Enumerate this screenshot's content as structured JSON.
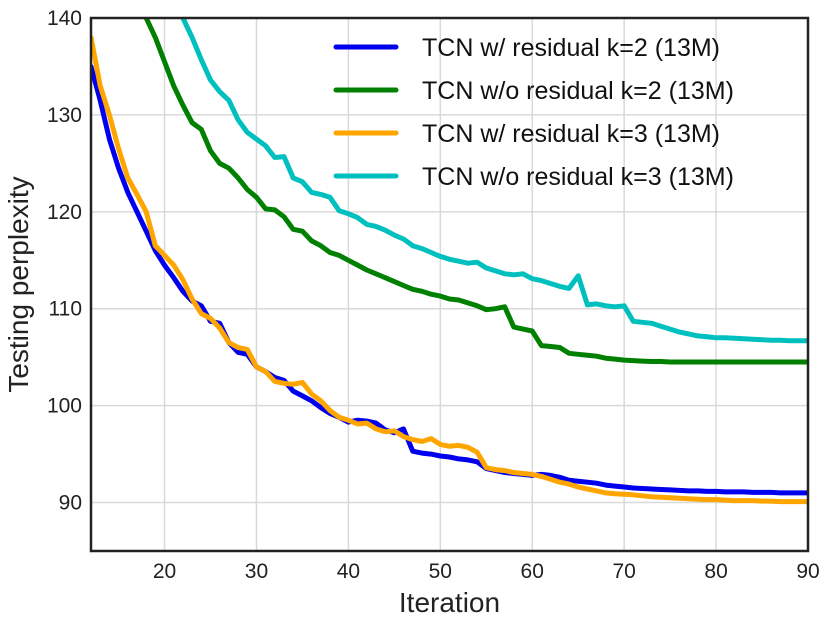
{
  "chart_data": {
    "type": "line",
    "title": "",
    "xlabel": "Iteration",
    "ylabel": "Testing perplexity",
    "xlim": [
      12,
      90
    ],
    "ylim": [
      85,
      140
    ],
    "xticks": [
      20,
      30,
      40,
      50,
      60,
      70,
      80,
      90
    ],
    "yticks": [
      90,
      100,
      110,
      120,
      130,
      140
    ],
    "grid": true,
    "legend_position": "top-right",
    "series": [
      {
        "name": "TCN w/ residual k=2 (13M)",
        "color": "#0000ee",
        "x": [
          12,
          13,
          14,
          15,
          16,
          17,
          18,
          19,
          20,
          21,
          22,
          23,
          24,
          25,
          26,
          27,
          28,
          29,
          30,
          31,
          32,
          33,
          34,
          35,
          36,
          37,
          38,
          39,
          40,
          41,
          42,
          43,
          44,
          45,
          46,
          47,
          48,
          49,
          50,
          51,
          52,
          53,
          54,
          55,
          56,
          57,
          58,
          59,
          60,
          61,
          62,
          63,
          64,
          65,
          66,
          67,
          68,
          69,
          70,
          71,
          72,
          73,
          74,
          75,
          76,
          77,
          78,
          79,
          80,
          81,
          82,
          83,
          84,
          85,
          86,
          87,
          88,
          89,
          90
        ],
        "y": [
          135,
          131.5,
          127.5,
          124.5,
          122,
          120,
          118,
          116,
          114.5,
          113.2,
          111.8,
          110.8,
          110.3,
          108.7,
          108.5,
          106.5,
          105.5,
          105.3,
          104,
          103.5,
          102.9,
          102.6,
          101.5,
          101,
          100.5,
          99.8,
          99.2,
          98.8,
          98.3,
          98.5,
          98.4,
          98.2,
          97.5,
          97.2,
          97.6,
          95.3,
          95.1,
          95,
          94.8,
          94.7,
          94.5,
          94.4,
          94.2,
          93.5,
          93.3,
          93.1,
          93,
          92.9,
          92.8,
          92.9,
          92.8,
          92.6,
          92.3,
          92.2,
          92.1,
          92,
          91.8,
          91.7,
          91.6,
          91.5,
          91.45,
          91.4,
          91.35,
          91.3,
          91.25,
          91.2,
          91.2,
          91.15,
          91.15,
          91.1,
          91.1,
          91.1,
          91.05,
          91.05,
          91.05,
          91,
          91,
          91,
          91
        ]
      },
      {
        "name": "TCN w/o residual k=2 (13M)",
        "color": "#008000",
        "x": [
          18,
          19,
          20,
          21,
          22,
          23,
          24,
          25,
          26,
          27,
          28,
          29,
          30,
          31,
          32,
          33,
          34,
          35,
          36,
          37,
          38,
          39,
          40,
          41,
          42,
          43,
          44,
          45,
          46,
          47,
          48,
          49,
          50,
          51,
          52,
          53,
          54,
          55,
          56,
          57,
          58,
          59,
          60,
          61,
          62,
          63,
          64,
          65,
          66,
          67,
          68,
          69,
          70,
          71,
          72,
          73,
          74,
          75,
          76,
          77,
          78,
          79,
          80,
          81,
          82,
          83,
          84,
          85,
          86,
          87,
          88,
          89,
          90
        ],
        "y": [
          140,
          138,
          135.5,
          133,
          131,
          129.2,
          128.5,
          126.3,
          125,
          124.5,
          123.5,
          122.3,
          121.5,
          120.3,
          120.2,
          119.5,
          118.2,
          118,
          117,
          116.5,
          115.8,
          115.5,
          115,
          114.5,
          114,
          113.6,
          113.2,
          112.8,
          112.4,
          112,
          111.8,
          111.5,
          111.3,
          111,
          110.9,
          110.6,
          110.3,
          109.9,
          110,
          110.2,
          108.1,
          107.9,
          107.7,
          106.2,
          106.1,
          106,
          105.4,
          105.3,
          105.2,
          105.1,
          104.9,
          104.8,
          104.7,
          104.65,
          104.6,
          104.55,
          104.55,
          104.5,
          104.5,
          104.5,
          104.5,
          104.5,
          104.5,
          104.5,
          104.5,
          104.5,
          104.5,
          104.5,
          104.5,
          104.5,
          104.5,
          104.5,
          104.5
        ]
      },
      {
        "name": "TCN w/ residual k=3 (13M)",
        "color": "#ffa500",
        "x": [
          12,
          13,
          14,
          15,
          16,
          17,
          18,
          19,
          20,
          21,
          22,
          23,
          24,
          25,
          26,
          27,
          28,
          29,
          30,
          31,
          32,
          33,
          34,
          35,
          36,
          37,
          38,
          39,
          40,
          41,
          42,
          43,
          44,
          45,
          46,
          47,
          48,
          49,
          50,
          51,
          52,
          53,
          54,
          55,
          56,
          57,
          58,
          59,
          60,
          61,
          62,
          63,
          64,
          65,
          66,
          67,
          68,
          69,
          70,
          71,
          72,
          73,
          74,
          75,
          76,
          77,
          78,
          79,
          80,
          81,
          82,
          83,
          84,
          85,
          86,
          87,
          88,
          89,
          90
        ],
        "y": [
          138,
          133,
          130,
          126.5,
          123.5,
          121.8,
          120,
          116.5,
          115.5,
          114.5,
          113,
          111,
          109.5,
          109,
          108,
          106.5,
          106,
          105.8,
          104,
          103.5,
          102.5,
          102.3,
          102.2,
          102.4,
          101.2,
          100.5,
          99.5,
          98.8,
          98.5,
          98.1,
          98.2,
          97.6,
          97.3,
          97.4,
          96.8,
          96.5,
          96.3,
          96.6,
          96,
          95.8,
          95.9,
          95.7,
          95.2,
          93.6,
          93.4,
          93.3,
          93.1,
          93,
          92.9,
          92.7,
          92.4,
          92.1,
          91.9,
          91.6,
          91.4,
          91.2,
          91,
          90.9,
          90.85,
          90.8,
          90.7,
          90.6,
          90.55,
          90.5,
          90.45,
          90.4,
          90.35,
          90.3,
          90.3,
          90.25,
          90.2,
          90.2,
          90.2,
          90.15,
          90.15,
          90.1,
          90.1,
          90.1,
          90.1
        ]
      },
      {
        "name": "TCN w/o residual k=3 (13M)",
        "color": "#00bfbf",
        "x": [
          22,
          23,
          24,
          25,
          26,
          27,
          28,
          29,
          30,
          31,
          32,
          33,
          34,
          35,
          36,
          37,
          38,
          39,
          40,
          41,
          42,
          43,
          44,
          45,
          46,
          47,
          48,
          49,
          50,
          51,
          52,
          53,
          54,
          55,
          56,
          57,
          58,
          59,
          60,
          61,
          62,
          63,
          64,
          65,
          66,
          67,
          68,
          69,
          70,
          71,
          72,
          73,
          74,
          75,
          76,
          77,
          78,
          79,
          80,
          81,
          82,
          83,
          84,
          85,
          86,
          87,
          88,
          89,
          90
        ],
        "y": [
          140,
          138,
          135.7,
          133.6,
          132.4,
          131.5,
          129.5,
          128.2,
          127.5,
          126.8,
          125.6,
          125.7,
          123.5,
          123.1,
          122,
          121.8,
          121.5,
          120.1,
          119.8,
          119.4,
          118.7,
          118.5,
          118.1,
          117.6,
          117.2,
          116.5,
          116.2,
          115.8,
          115.4,
          115.1,
          114.9,
          114.7,
          114.8,
          114.2,
          113.9,
          113.6,
          113.5,
          113.6,
          113.1,
          112.9,
          112.6,
          112.3,
          112.1,
          113.4,
          110.4,
          110.5,
          110.3,
          110.2,
          110.3,
          108.7,
          108.6,
          108.5,
          108.2,
          107.9,
          107.6,
          107.4,
          107.2,
          107.1,
          107,
          107,
          106.95,
          106.9,
          106.85,
          106.8,
          106.75,
          106.75,
          106.7,
          106.7,
          106.7
        ]
      }
    ]
  }
}
